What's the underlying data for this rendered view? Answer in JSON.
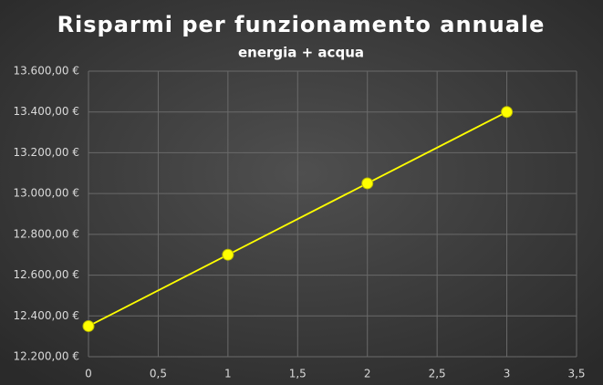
{
  "chart_data": {
    "type": "scatter",
    "title": "Risparmi per funzionamento annuale",
    "subtitle": "energia + acqua",
    "x": [
      0,
      1,
      2,
      3
    ],
    "series": [
      {
        "name": "Risparmi",
        "color": "#ffff00",
        "values": [
          12350,
          12700,
          13050,
          13400
        ]
      }
    ],
    "xlim": [
      0,
      3.5
    ],
    "xticks": [
      0,
      {
        "value": 0.5,
        "label": "0,5"
      },
      1,
      {
        "value": 1.5,
        "label": "1,5"
      },
      2,
      {
        "value": 2.5,
        "label": "2,5"
      },
      3,
      {
        "value": 3.5,
        "label": "3,5"
      }
    ],
    "ylim": [
      12200,
      13600
    ],
    "yticks": [
      {
        "value": 12200,
        "label": "12.200,00 €"
      },
      {
        "value": 12400,
        "label": "12.400,00 €"
      },
      {
        "value": 12600,
        "label": "12.600,00 €"
      },
      {
        "value": 12800,
        "label": "12.800,00 €"
      },
      {
        "value": 13000,
        "label": "13.000,00 €"
      },
      {
        "value": 13200,
        "label": "13.200,00 €"
      },
      {
        "value": 13400,
        "label": "13.400,00 €"
      },
      {
        "value": 13600,
        "label": "13.600,00 €"
      }
    ],
    "grid": true
  }
}
